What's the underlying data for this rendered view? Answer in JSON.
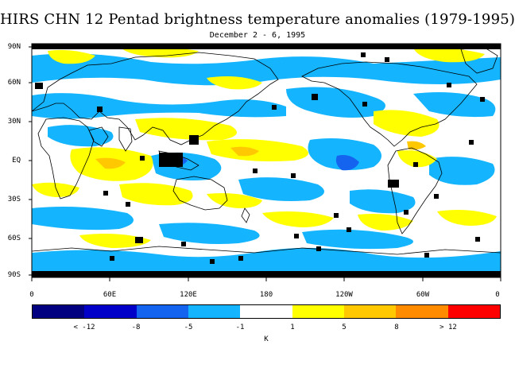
{
  "title": "HIRS CHN 12 Pentad brightness temperature anomalies (1979-1995)",
  "subtitle": "December 2 - 6, 1995",
  "map": {
    "projection": "equirectangular",
    "latitude_labels": [
      "90N",
      "60N",
      "30N",
      "EQ",
      "30S",
      "60S",
      "90S"
    ],
    "longitude_labels": [
      "0",
      "60E",
      "120E",
      "180",
      "120W",
      "60W",
      "0"
    ],
    "coastline_color": "#000000",
    "missing_data_color": "#000000"
  },
  "legend": {
    "colors": [
      "#000080",
      "#0000c8",
      "#1464f0",
      "#14b4ff",
      "#ffffff",
      "#ffff00",
      "#ffc800",
      "#ff8c00",
      "#ff0000"
    ],
    "boundary_labels": [
      "< -12",
      "-8",
      "-5",
      "-1",
      "1",
      "5",
      "8",
      "> 12"
    ],
    "unit": "K"
  }
}
